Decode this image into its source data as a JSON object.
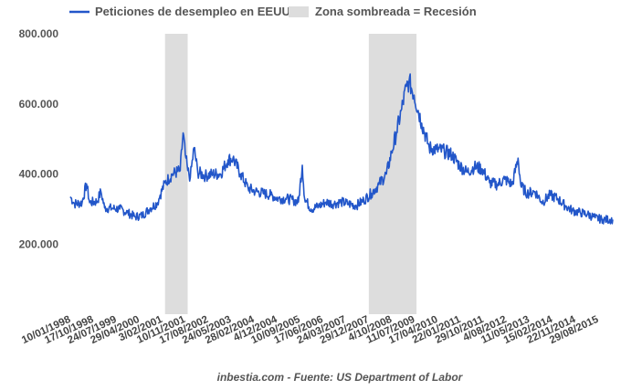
{
  "chart_data": {
    "type": "line",
    "legend": {
      "series_label": "Peticiones de desempleo en EEUU",
      "shade_label": "Zona sombreada = Recesión",
      "placement": "top-left"
    },
    "colors": {
      "line": "#2256c9",
      "shade": "#dddddd",
      "text": "#555555"
    },
    "ylim": [
      0,
      800000
    ],
    "yticks": [
      200000,
      400000,
      600000,
      800000
    ],
    "ytick_labels": [
      "200.000",
      "400.000",
      "600.000",
      "800.000"
    ],
    "grid": false,
    "x_range": [
      "1998-01-10",
      "2015-12-31"
    ],
    "xtick_labels": [
      "10/01/1998",
      "17/10/1998",
      "24/07/1999",
      "29/04/2000",
      "3/02/2001",
      "10/11/2001",
      "17/08/2002",
      "24/05/2003",
      "28/02/2004",
      "4/12/2004",
      "10/09/2005",
      "17/06/2006",
      "24/03/2007",
      "29/12/2007",
      "4/10/2008",
      "11/07/2009",
      "17/04/2010",
      "22/01/2011",
      "29/10/2011",
      "4/08/2012",
      "11/05/2013",
      "15/02/2014",
      "22/11/2014",
      "29/08/2015"
    ],
    "recessions": [
      {
        "start": "2001-03-01",
        "end": "2001-11-30"
      },
      {
        "start": "2007-12-01",
        "end": "2009-06-30"
      }
    ],
    "series": [
      {
        "name": "Peticiones de desempleo en EEUU",
        "points": [
          [
            "1998-01-10",
            335000
          ],
          [
            "1998-03-01",
            315000
          ],
          [
            "1998-06-01",
            318000
          ],
          [
            "1998-07-25",
            372000
          ],
          [
            "1998-09-01",
            318000
          ],
          [
            "1998-12-01",
            322000
          ],
          [
            "1999-01-15",
            350000
          ],
          [
            "1999-03-01",
            303000
          ],
          [
            "1999-06-01",
            302000
          ],
          [
            "1999-09-01",
            300000
          ],
          [
            "1999-12-01",
            290000
          ],
          [
            "2000-03-01",
            278000
          ],
          [
            "2000-06-01",
            282000
          ],
          [
            "2000-09-01",
            302000
          ],
          [
            "2000-12-01",
            318000
          ],
          [
            "2001-01-01",
            340000
          ],
          [
            "2001-03-01",
            375000
          ],
          [
            "2001-06-01",
            400000
          ],
          [
            "2001-09-01",
            410000
          ],
          [
            "2001-10-06",
            517000
          ],
          [
            "2001-11-01",
            455000
          ],
          [
            "2001-12-01",
            410000
          ],
          [
            "2002-01-01",
            390000
          ],
          [
            "2002-02-15",
            475000
          ],
          [
            "2002-04-01",
            405000
          ],
          [
            "2002-07-01",
            395000
          ],
          [
            "2002-10-01",
            400000
          ],
          [
            "2003-01-01",
            400000
          ],
          [
            "2003-04-01",
            440000
          ],
          [
            "2003-06-01",
            445000
          ],
          [
            "2003-09-01",
            400000
          ],
          [
            "2003-12-01",
            360000
          ],
          [
            "2004-03-01",
            350000
          ],
          [
            "2004-06-01",
            345000
          ],
          [
            "2004-09-01",
            340000
          ],
          [
            "2004-12-01",
            330000
          ],
          [
            "2005-03-01",
            330000
          ],
          [
            "2005-06-01",
            325000
          ],
          [
            "2005-08-01",
            320000
          ],
          [
            "2005-09-17",
            425000
          ],
          [
            "2005-10-15",
            330000
          ],
          [
            "2006-01-01",
            300000
          ],
          [
            "2006-04-01",
            308000
          ],
          [
            "2006-07-01",
            320000
          ],
          [
            "2006-10-01",
            315000
          ],
          [
            "2007-01-01",
            320000
          ],
          [
            "2007-04-01",
            315000
          ],
          [
            "2007-07-01",
            310000
          ],
          [
            "2007-10-01",
            325000
          ],
          [
            "2008-01-01",
            345000
          ],
          [
            "2008-04-01",
            370000
          ],
          [
            "2008-07-01",
            400000
          ],
          [
            "2008-09-01",
            460000
          ],
          [
            "2008-11-01",
            520000
          ],
          [
            "2009-01-01",
            585000
          ],
          [
            "2009-03-01",
            650000
          ],
          [
            "2009-04-01",
            665000
          ],
          [
            "2009-06-01",
            625000
          ],
          [
            "2009-09-01",
            545000
          ],
          [
            "2009-12-01",
            475000
          ],
          [
            "2010-03-01",
            470000
          ],
          [
            "2010-06-01",
            465000
          ],
          [
            "2010-09-01",
            455000
          ],
          [
            "2010-12-01",
            425000
          ],
          [
            "2011-03-01",
            405000
          ],
          [
            "2011-06-01",
            420000
          ],
          [
            "2011-09-01",
            415000
          ],
          [
            "2011-12-01",
            375000
          ],
          [
            "2012-03-01",
            370000
          ],
          [
            "2012-06-01",
            385000
          ],
          [
            "2012-09-01",
            370000
          ],
          [
            "2012-11-10",
            445000
          ],
          [
            "2012-12-15",
            365000
          ],
          [
            "2013-03-01",
            345000
          ],
          [
            "2013-06-01",
            350000
          ],
          [
            "2013-09-01",
            320000
          ],
          [
            "2013-12-01",
            340000
          ],
          [
            "2014-03-01",
            330000
          ],
          [
            "2014-06-01",
            310000
          ],
          [
            "2014-09-01",
            295000
          ],
          [
            "2014-12-01",
            290000
          ],
          [
            "2015-03-01",
            285000
          ],
          [
            "2015-06-01",
            275000
          ],
          [
            "2015-09-01",
            270000
          ],
          [
            "2015-12-31",
            270000
          ]
        ]
      }
    ],
    "source_note": "inbestia.com - Fuente: US Department of Labor"
  }
}
